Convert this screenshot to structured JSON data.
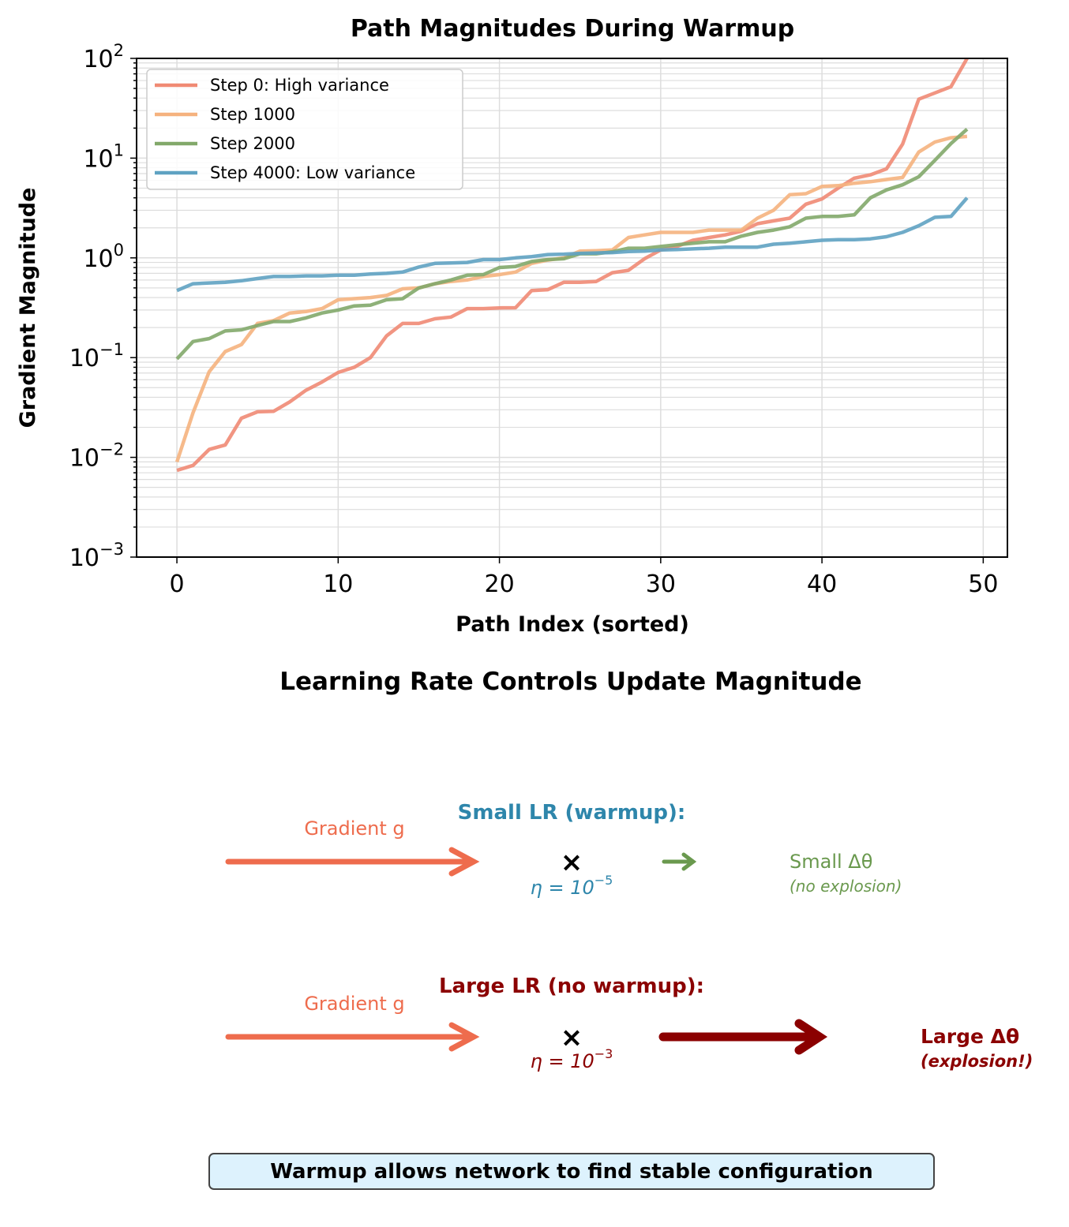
{
  "chart_data": [
    {
      "type": "line",
      "title": "Path Magnitudes During Warmup",
      "xlabel": "Path Index (sorted)",
      "ylabel": "Gradient Magnitude",
      "yscale": "log",
      "xlim": [
        -2.5,
        51.5
      ],
      "ylim": [
        0.001,
        100
      ],
      "x_ticks": [
        0,
        10,
        20,
        30,
        40,
        50
      ],
      "y_tick_base": "10",
      "y_tick_exponents": [
        "2",
        "1",
        "0",
        "−1",
        "−2",
        "−3"
      ],
      "grid": true,
      "legend_position": "top-left",
      "x": [
        0,
        1,
        2,
        3,
        4,
        5,
        6,
        7,
        8,
        9,
        10,
        11,
        12,
        13,
        14,
        15,
        16,
        17,
        18,
        19,
        20,
        21,
        22,
        23,
        24,
        25,
        26,
        27,
        28,
        29,
        30,
        31,
        32,
        33,
        34,
        35,
        36,
        37,
        38,
        39,
        40,
        41,
        42,
        43,
        44,
        45,
        46,
        47,
        48,
        49
      ],
      "series": [
        {
          "name": "Step 0: High variance",
          "color": "#f08a74",
          "values": [
            0.0074,
            0.0083,
            0.012,
            0.0133,
            0.0247,
            0.0286,
            0.029,
            0.036,
            0.047,
            0.057,
            0.071,
            0.08,
            0.1,
            0.165,
            0.22,
            0.22,
            0.245,
            0.255,
            0.31,
            0.31,
            0.315,
            0.316,
            0.47,
            0.48,
            0.57,
            0.57,
            0.58,
            0.71,
            0.75,
            0.98,
            1.2,
            1.3,
            1.5,
            1.6,
            1.7,
            1.85,
            2.2,
            2.35,
            2.5,
            3.45,
            3.9,
            5.0,
            6.3,
            6.8,
            7.8,
            13.8,
            39,
            45,
            52,
            100
          ]
        },
        {
          "name": "Step 1000",
          "color": "#f5b27e",
          "values": [
            0.009,
            0.028,
            0.072,
            0.115,
            0.135,
            0.22,
            0.235,
            0.28,
            0.29,
            0.31,
            0.38,
            0.39,
            0.4,
            0.42,
            0.49,
            0.5,
            0.55,
            0.58,
            0.6,
            0.65,
            0.68,
            0.72,
            0.88,
            0.95,
            1.0,
            1.17,
            1.18,
            1.2,
            1.6,
            1.7,
            1.8,
            1.8,
            1.8,
            1.9,
            1.9,
            1.9,
            2.5,
            3.0,
            4.3,
            4.4,
            5.2,
            5.3,
            5.6,
            5.8,
            6.1,
            6.4,
            11.5,
            14.5,
            16,
            16.5
          ]
        },
        {
          "name": "Step 2000",
          "color": "#82a86a",
          "values": [
            0.097,
            0.145,
            0.155,
            0.185,
            0.19,
            0.21,
            0.23,
            0.23,
            0.25,
            0.28,
            0.3,
            0.33,
            0.335,
            0.38,
            0.39,
            0.5,
            0.55,
            0.6,
            0.67,
            0.68,
            0.8,
            0.82,
            0.92,
            0.96,
            0.98,
            1.1,
            1.1,
            1.15,
            1.25,
            1.25,
            1.3,
            1.35,
            1.4,
            1.45,
            1.45,
            1.65,
            1.8,
            1.9,
            2.05,
            2.5,
            2.6,
            2.6,
            2.7,
            4.0,
            4.8,
            5.4,
            6.5,
            9.5,
            14,
            19.5
          ]
        },
        {
          "name": "Step 4000: Low variance",
          "color": "#5fa2c2",
          "values": [
            0.47,
            0.55,
            0.56,
            0.57,
            0.59,
            0.62,
            0.65,
            0.65,
            0.66,
            0.66,
            0.67,
            0.67,
            0.69,
            0.7,
            0.72,
            0.81,
            0.88,
            0.89,
            0.9,
            0.96,
            0.96,
            1.0,
            1.03,
            1.08,
            1.09,
            1.11,
            1.12,
            1.13,
            1.16,
            1.17,
            1.2,
            1.21,
            1.23,
            1.25,
            1.28,
            1.28,
            1.28,
            1.37,
            1.4,
            1.45,
            1.5,
            1.52,
            1.52,
            1.55,
            1.63,
            1.8,
            2.1,
            2.55,
            2.6,
            4.0
          ]
        }
      ]
    }
  ],
  "diagram": {
    "title": "Learning Rate Controls Update Magnitude",
    "small": {
      "heading": "Small LR (warmup):",
      "gradient_label": "Gradient g",
      "times": "×",
      "eta_prefix": "η = 10",
      "eta_exp": "−5",
      "result": "Small Δθ",
      "result_note": "(no explosion)",
      "heading_color": "#2e86ab",
      "result_color": "#6a994e"
    },
    "large": {
      "heading": "Large LR (no warmup):",
      "gradient_label": "Gradient g",
      "times": "×",
      "eta_prefix": "η = 10",
      "eta_exp": "−3",
      "result": "Large Δθ",
      "result_note": "(explosion!)",
      "color": "#8b0000"
    },
    "gradient_color": "#ee6c4d",
    "footer": "Warmup allows network to find stable configuration"
  }
}
